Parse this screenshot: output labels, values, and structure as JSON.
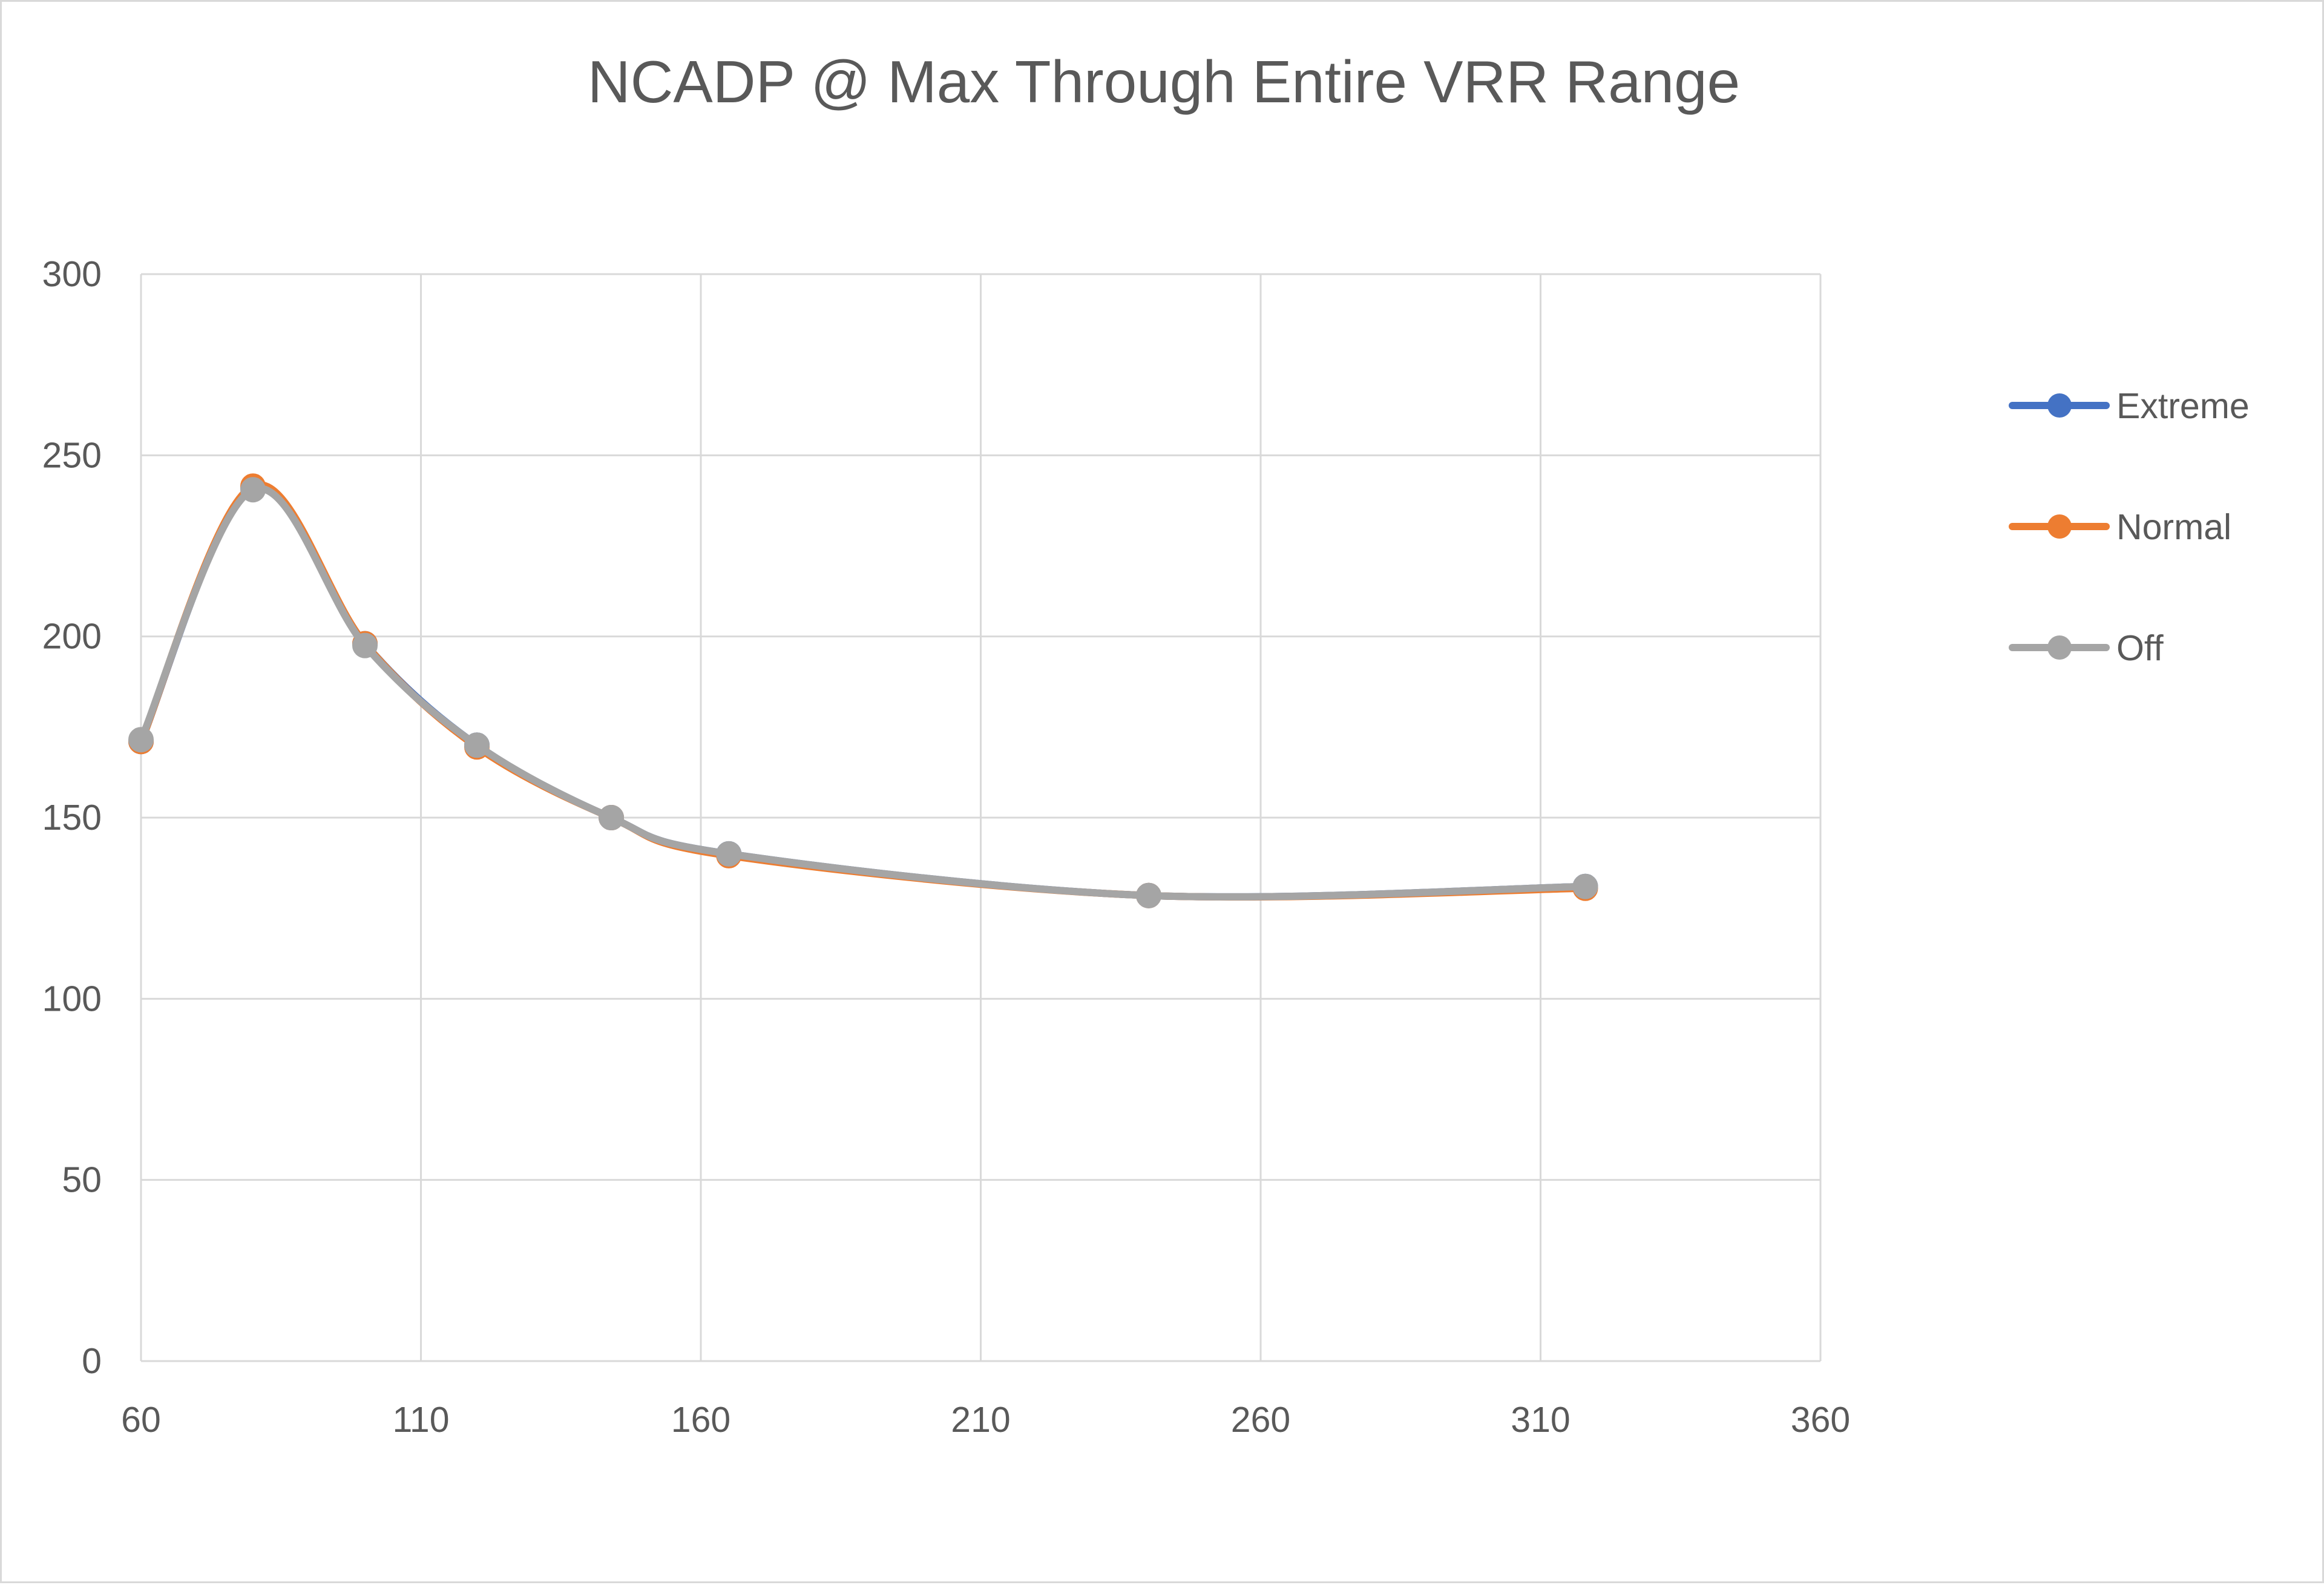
{
  "chart_data": {
    "type": "line",
    "title": "NCADP @ Max Through Entire VRR Range",
    "xlabel": "",
    "ylabel": "",
    "xlim": [
      60,
      360
    ],
    "ylim": [
      0,
      300
    ],
    "x_ticks": [
      "60",
      "110",
      "160",
      "210",
      "260",
      "310",
      "360"
    ],
    "y_ticks": [
      "0",
      "50",
      "100",
      "150",
      "200",
      "250",
      "300"
    ],
    "x_tick_values": [
      60,
      110,
      160,
      210,
      260,
      310,
      360
    ],
    "y_tick_values": [
      0,
      50,
      100,
      150,
      200,
      250,
      300
    ],
    "grid": true,
    "smooth": true,
    "legend_position": "right",
    "x": [
      60,
      80,
      100,
      120,
      144,
      165,
      240,
      318
    ],
    "series": [
      {
        "name": "Extreme",
        "color": "#4472C4",
        "values": [
          171,
          241,
          198,
          170,
          150,
          140,
          128.5,
          131
        ]
      },
      {
        "name": "Normal",
        "color": "#ED7D31",
        "values": [
          171,
          241.5,
          198,
          169.5,
          150,
          139.5,
          128.5,
          130.5
        ]
      },
      {
        "name": "Off",
        "color": "#A5A5A5",
        "values": [
          171.5,
          240.5,
          197.5,
          170,
          150,
          140,
          128.5,
          131
        ]
      }
    ]
  }
}
